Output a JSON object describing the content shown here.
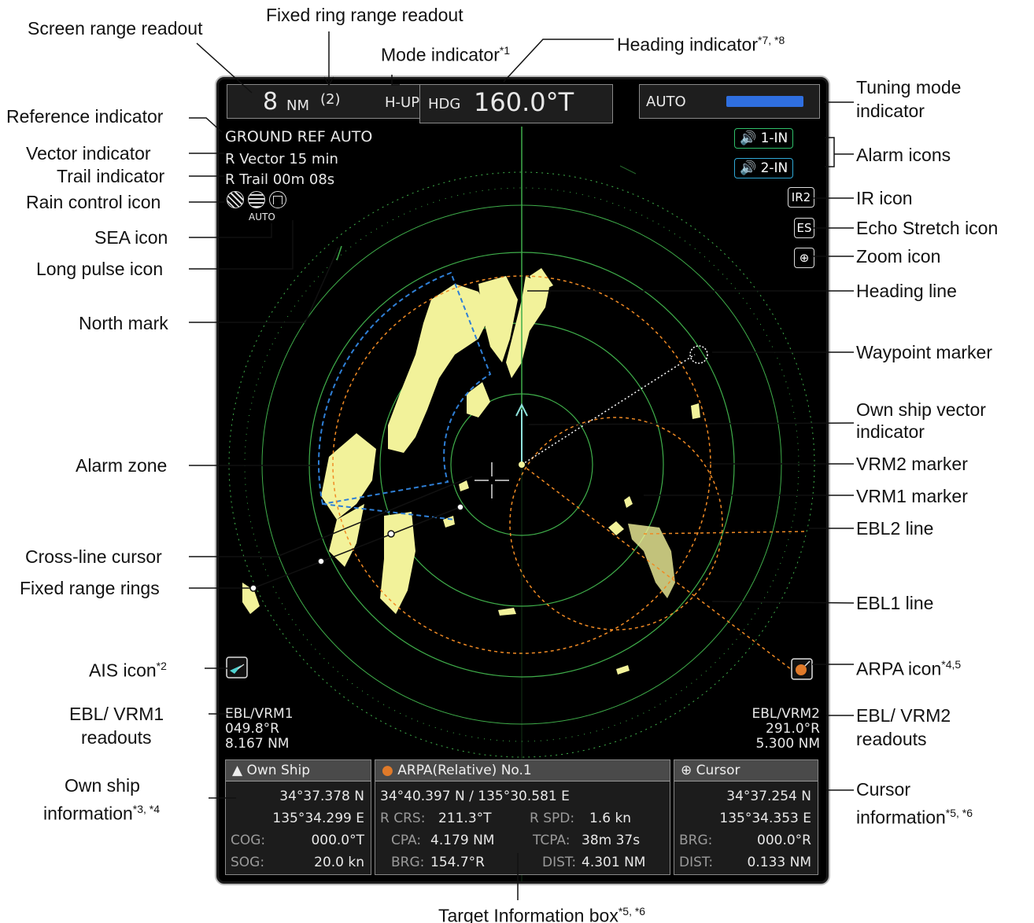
{
  "callouts": {
    "screen_range": "Screen range readout",
    "fixed_ring": "Fixed ring range readout",
    "mode": "Mode indicator",
    "mode_note": "*1",
    "heading": "Heading indicator",
    "heading_note": "*7, *8",
    "tuning_1": "Tuning mode",
    "tuning_2": "indicator",
    "reference": "Reference indicator",
    "vector": "Vector indicator",
    "trail": "Trail indicator",
    "rain": "Rain control icon",
    "sea": "SEA icon",
    "long_pulse": "Long pulse icon",
    "north": "North mark",
    "alarm_icons": "Alarm icons",
    "ir_icon": "IR icon",
    "echo_stretch": "Echo Stretch icon",
    "zoom_icon": "Zoom icon",
    "heading_line": "Heading line",
    "waypoint": "Waypoint marker",
    "own_vector_1": "Own ship vector",
    "own_vector_2": "indicator",
    "vrm2": "VRM2 marker",
    "vrm1": "VRM1 marker",
    "ebl2": "EBL2 line",
    "ebl1": "EBL1 line",
    "alarm_zone": "Alarm zone",
    "cross_cursor": "Cross-line cursor",
    "fixed_rings": "Fixed range rings",
    "ais": "AIS icon",
    "ais_note": "*2",
    "arpa": "ARPA icon",
    "arpa_note": "*4,5",
    "ebl_vrm1_1": "EBL/ VRM1",
    "ebl_vrm1_2": "readouts",
    "ebl_vrm2_1": "EBL/ VRM2",
    "ebl_vrm2_2": "readouts",
    "own_info_1": "Own ship",
    "own_info_2": "information",
    "own_info_note": "*3, *4",
    "cursor_info_1": "Cursor",
    "cursor_info_2": "information",
    "cursor_info_note": "*5, *6",
    "target_box": "Target Information box",
    "target_box_note": "*5, *6"
  },
  "screen": {
    "range_value": "8",
    "range_unit": "NM",
    "ring_count": "(2)",
    "mode": "H-UP",
    "hdg_label": "HDG",
    "hdg_value": "160.0°T",
    "tune_mode": "AUTO",
    "reference": "GROUND REF AUTO",
    "vector": "R Vector 15 min",
    "trail": "R Trail 00m 08s",
    "rain_auto": "AUTO",
    "alarm1": "1-IN",
    "alarm2": "2-IN",
    "ir": "IR2",
    "es": "ES",
    "ebl1_title": "EBL/VRM1",
    "ebl1_bearing": "049.8°R",
    "ebl1_range": "8.167 NM",
    "ebl2_title": "EBL/VRM2",
    "ebl2_bearing": "291.0°R",
    "ebl2_range": "5.300 NM"
  },
  "own_ship": {
    "title": "Own Ship",
    "lat": "34°37.378 N",
    "lon": "135°34.299 E",
    "cog_label": "COG:",
    "cog": "000.0°T",
    "sog_label": "SOG:",
    "sog": "20.0 kn"
  },
  "target": {
    "title": "ARPA(Relative)  No.1",
    "position": "34°40.397 N / 135°30.581 E",
    "rcrs_label": "R CRS:",
    "rcrs": "211.3°T",
    "rspd_label": "R SPD:",
    "rspd": "1.6 kn",
    "cpa_label": "CPA:",
    "cpa": "4.179 NM",
    "tcpa_label": "TCPA:",
    "tcpa": "38m 37s",
    "brg_label": "BRG:",
    "brg": "154.7°R",
    "dist_label": "DIST:",
    "dist": "4.301 NM"
  },
  "cursor": {
    "title": "Cursor",
    "lat": "34°37.254 N",
    "lon": "135°34.353 E",
    "brg_label": "BRG:",
    "brg": "000.0°R",
    "dist_label": "DIST:",
    "dist": "0.133 NM"
  },
  "colors": {
    "rings": "#3fae4a",
    "vrm": "#f08a24",
    "echo": "#f2f29a",
    "alarm_zone": "#2f7fd6",
    "vector": "#8fe3dc",
    "tune_bar": "#2f6fe0"
  }
}
